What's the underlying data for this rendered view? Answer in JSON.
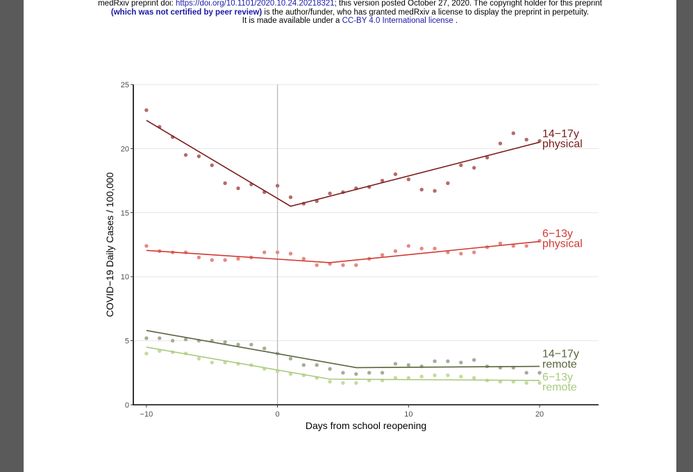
{
  "header": {
    "line1_prefix": "medRxiv preprint doi: ",
    "doi_link": "https://doi.org/10.1101/2020.10.24.20218321",
    "line1_suffix": "; this version posted October 27, 2020. The copyright holder for this preprint",
    "line2_bold": "(which was not certified by peer review)",
    "line2_rest": " is the author/funder, who has granted medRxiv a license to display the preprint in perpetuity.",
    "line3_prefix": "It is made available under a ",
    "license_link": "CC-BY 4.0 International license",
    "line3_suffix": " ."
  },
  "chart_data": {
    "type": "scatter",
    "xlabel": "Days from school reopening",
    "ylabel": "COVID−19 Daily Cases / 100,000",
    "xlim": [
      -11,
      24.5
    ],
    "ylim": [
      0,
      25
    ],
    "x_ticks": [
      -10,
      0,
      10,
      20
    ],
    "x_tick_labels": [
      "−10",
      "0",
      "10",
      "20"
    ],
    "y_ticks": [
      0,
      5,
      10,
      15,
      20,
      25
    ],
    "y_tick_labels": [
      "0",
      "5",
      "10",
      "15",
      "20",
      "25"
    ],
    "vline_x": 0,
    "grid": "horizontal",
    "series": [
      {
        "name": "14−17y physical",
        "label_lines": [
          "14−17y",
          "physical"
        ],
        "line_color": "#7a1a1a",
        "point_color": "#b56a6a",
        "x": [
          -10,
          -9,
          -8,
          -7,
          -6,
          -5,
          -4,
          -3,
          -2,
          -1,
          0,
          1,
          2,
          3,
          4,
          5,
          6,
          7,
          8,
          9,
          10,
          11,
          12,
          13,
          14,
          15,
          16,
          17,
          18,
          19,
          20
        ],
        "y": [
          23.0,
          21.7,
          20.9,
          19.5,
          19.4,
          18.7,
          17.3,
          16.9,
          17.2,
          16.6,
          17.1,
          16.2,
          15.7,
          15.9,
          16.5,
          16.6,
          16.9,
          17.0,
          17.5,
          18.0,
          17.6,
          16.8,
          16.7,
          17.3,
          18.7,
          18.5,
          19.3,
          20.4,
          21.2,
          20.7,
          20.6
        ],
        "fit_x": [
          -10,
          1,
          20
        ],
        "fit_y": [
          22.2,
          15.5,
          20.5
        ],
        "label_y": [
          20.9,
          20.1
        ]
      },
      {
        "name": "6−13y physical",
        "label_lines": [
          "6−13y",
          "physical"
        ],
        "line_color": "#d03a32",
        "point_color": "#e58a84",
        "x": [
          -10,
          -9,
          -8,
          -7,
          -6,
          -5,
          -4,
          -3,
          -2,
          -1,
          0,
          1,
          2,
          3,
          4,
          5,
          6,
          7,
          8,
          9,
          10,
          11,
          12,
          13,
          14,
          15,
          16,
          17,
          18,
          19,
          20
        ],
        "y": [
          12.4,
          12.0,
          11.9,
          11.9,
          11.5,
          11.3,
          11.3,
          11.4,
          11.5,
          11.9,
          11.9,
          11.8,
          11.4,
          10.9,
          11.0,
          10.9,
          10.9,
          11.4,
          11.7,
          12.0,
          12.4,
          12.2,
          12.2,
          11.9,
          11.8,
          11.9,
          12.3,
          12.6,
          12.4,
          12.4,
          12.8
        ],
        "fit_x": [
          -10,
          4,
          20
        ],
        "fit_y": [
          12.05,
          11.1,
          12.75
        ],
        "label_y": [
          13.1,
          12.3
        ]
      },
      {
        "name": "14−17y remote",
        "label_lines": [
          "14−17y",
          "remote"
        ],
        "line_color": "#56653a",
        "point_color": "#a6ad98",
        "x": [
          -10,
          -9,
          -8,
          -7,
          -6,
          -5,
          -4,
          -3,
          -2,
          -1,
          0,
          1,
          2,
          3,
          4,
          5,
          6,
          7,
          8,
          9,
          10,
          11,
          12,
          13,
          14,
          15,
          16,
          17,
          18,
          19,
          20
        ],
        "y": [
          5.2,
          5.2,
          5.0,
          5.1,
          5.0,
          5.0,
          4.9,
          4.7,
          4.7,
          4.4,
          4.0,
          3.6,
          3.1,
          3.1,
          2.8,
          2.5,
          2.4,
          2.5,
          2.5,
          3.2,
          3.1,
          3.0,
          3.4,
          3.4,
          3.3,
          3.5,
          3.0,
          2.9,
          2.9,
          2.5,
          2.5
        ],
        "fit_x": [
          -10,
          6,
          20
        ],
        "fit_y": [
          5.8,
          2.9,
          3.0
        ],
        "label_y": [
          3.7,
          2.9
        ]
      },
      {
        "name": "6−13y remote",
        "label_lines": [
          "6−13y",
          "remote"
        ],
        "line_color": "#a8c97a",
        "point_color": "#c4dca0",
        "x": [
          -10,
          -9,
          -8,
          -7,
          -6,
          -5,
          -4,
          -3,
          -2,
          -1,
          0,
          1,
          2,
          3,
          4,
          5,
          6,
          7,
          8,
          9,
          10,
          11,
          12,
          13,
          14,
          15,
          16,
          17,
          18,
          19,
          20
        ],
        "y": [
          4.0,
          4.2,
          4.1,
          4.0,
          3.6,
          3.3,
          3.3,
          3.2,
          3.1,
          2.8,
          2.6,
          2.4,
          2.3,
          2.1,
          1.8,
          1.7,
          1.7,
          1.9,
          1.9,
          2.1,
          2.1,
          2.2,
          2.3,
          2.3,
          2.2,
          2.1,
          1.9,
          1.8,
          1.8,
          1.7,
          1.7
        ],
        "fit_x": [
          -10,
          4,
          20
        ],
        "fit_y": [
          4.5,
          2.0,
          1.9
        ],
        "label_y": [
          1.9,
          1.1
        ]
      }
    ]
  }
}
